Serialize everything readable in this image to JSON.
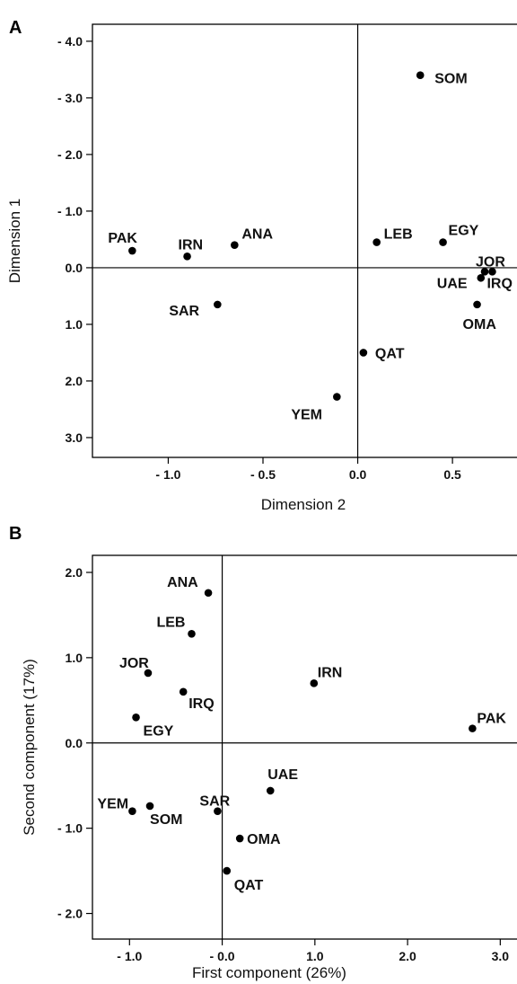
{
  "chart_data": [
    {
      "panel": "A",
      "type": "scatter",
      "xlabel": "Dimension 2",
      "ylabel": "Dimension 1",
      "xlim": [
        -1.4,
        0.85
      ],
      "ylim": [
        3.35,
        -4.3
      ],
      "y_inverted": true,
      "xticks": [
        -1.0,
        -0.5,
        0.0,
        0.5
      ],
      "xtick_labels": [
        "- 1.0",
        "- 0.5",
        "0.0",
        "0.5"
      ],
      "yticks": [
        -4.0,
        -3.0,
        -2.0,
        -1.0,
        0.0,
        1.0,
        2.0,
        3.0
      ],
      "ytick_labels": [
        "- 4.0",
        "- 3.0",
        "- 2.0",
        "- 1.0",
        "0.0",
        "1.0",
        "2.0",
        "3.0"
      ],
      "reference_lines": {
        "x": 0.0,
        "y": 0.0
      },
      "points": [
        {
          "label": "SOM",
          "x": 0.33,
          "y": -3.4
        },
        {
          "label": "PAK",
          "x": -1.19,
          "y": -0.3
        },
        {
          "label": "IRN",
          "x": -0.9,
          "y": -0.2
        },
        {
          "label": "ANA",
          "x": -0.65,
          "y": -0.4
        },
        {
          "label": "LEB",
          "x": 0.1,
          "y": -0.45
        },
        {
          "label": "EGY",
          "x": 0.45,
          "y": -0.45
        },
        {
          "label": "JOR",
          "x": 0.67,
          "y": 0.07
        },
        {
          "label": "UAE",
          "x": 0.65,
          "y": 0.18
        },
        {
          "label": "IRQ",
          "x": 0.71,
          "y": 0.07
        },
        {
          "label": "OMA",
          "x": 0.63,
          "y": 0.65
        },
        {
          "label": "SAR",
          "x": -0.74,
          "y": 0.65
        },
        {
          "label": "QAT",
          "x": 0.03,
          "y": 1.5
        },
        {
          "label": "YEM",
          "x": -0.11,
          "y": 2.28
        }
      ]
    },
    {
      "panel": "B",
      "type": "scatter",
      "xlabel": "First component (26%)",
      "ylabel": "Second component (17%)",
      "xlim": [
        -1.4,
        3.2
      ],
      "ylim": [
        -2.3,
        2.2
      ],
      "xticks": [
        -1.0,
        0.0,
        1.0,
        2.0,
        3.0
      ],
      "xtick_labels": [
        "- 1.0",
        "- 0.0",
        "1.0",
        "2.0",
        "3.0"
      ],
      "yticks": [
        2.0,
        1.0,
        0.0,
        -1.0,
        -2.0
      ],
      "ytick_labels": [
        "2.0",
        "1.0",
        "0.0",
        "- 1.0",
        "- 2.0"
      ],
      "reference_lines": {
        "x": 0.0,
        "y": 0.0
      },
      "points": [
        {
          "label": "ANA",
          "x": -0.15,
          "y": 1.76
        },
        {
          "label": "LEB",
          "x": -0.33,
          "y": 1.28
        },
        {
          "label": "JOR",
          "x": -0.8,
          "y": 0.82
        },
        {
          "label": "IRQ",
          "x": -0.42,
          "y": 0.6
        },
        {
          "label": "EGY",
          "x": -0.93,
          "y": 0.3
        },
        {
          "label": "IRN",
          "x": 0.99,
          "y": 0.7
        },
        {
          "label": "PAK",
          "x": 2.7,
          "y": 0.17
        },
        {
          "label": "UAE",
          "x": 0.52,
          "y": -0.56
        },
        {
          "label": "YEM",
          "x": -0.97,
          "y": -0.8
        },
        {
          "label": "SOM",
          "x": -0.78,
          "y": -0.74
        },
        {
          "label": "SAR",
          "x": -0.05,
          "y": -0.8
        },
        {
          "label": "OMA",
          "x": 0.19,
          "y": -1.12
        },
        {
          "label": "QAT",
          "x": 0.05,
          "y": -1.5
        }
      ]
    }
  ]
}
